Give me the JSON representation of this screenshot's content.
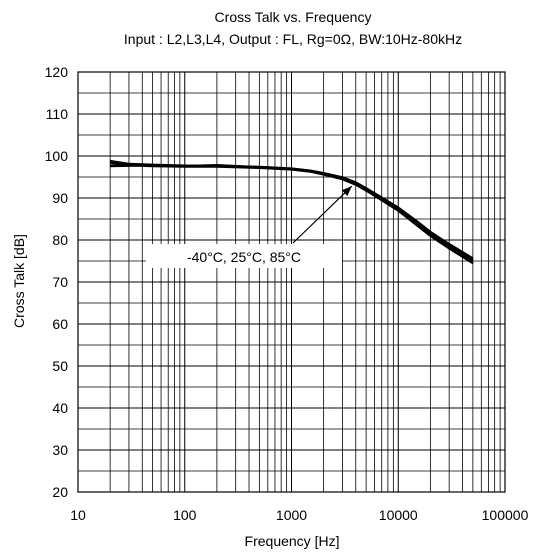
{
  "chart_data": {
    "type": "line",
    "title": "Cross Talk vs. Frequency",
    "subtitle": "Input : L2,L3,L4, Output : FL, Rg=0Ω, BW:10Hz-80kHz",
    "xlabel": "Frequency [Hz]",
    "ylabel": "Cross Talk [dB]",
    "x_scale": "log",
    "xlim": [
      10,
      100000
    ],
    "ylim": [
      20,
      120
    ],
    "x_ticks": [
      "10",
      "100",
      "1000",
      "10000",
      "100000"
    ],
    "y_ticks": [
      "20",
      "30",
      "40",
      "50",
      "60",
      "70",
      "80",
      "90",
      "100",
      "110",
      "120"
    ],
    "grid": true,
    "line_color": "#000000",
    "annotation": {
      "text": "-40°C, 25°C, 85°C",
      "points_to": [
        4000,
        94
      ]
    },
    "series": [
      {
        "x": [
          20,
          30,
          50,
          100,
          200,
          500,
          1000,
          1500,
          2000,
          3000,
          4000,
          5000,
          7000,
          10000,
          15000,
          20000,
          30000,
          50000
        ],
        "y": [
          98.3,
          97.8,
          97.6,
          97.5,
          97.5,
          97.2,
          96.8,
          96.3,
          95.6,
          94.5,
          93.2,
          91.8,
          89.5,
          87.0,
          83.5,
          81.0,
          78.0,
          74.5
        ]
      },
      {
        "x": [
          20,
          30,
          50,
          100,
          200,
          500,
          1000,
          1500,
          2000,
          3000,
          4000,
          5000,
          7000,
          10000,
          15000,
          20000,
          30000,
          50000
        ],
        "y": [
          97.6,
          97.7,
          97.8,
          97.6,
          97.8,
          97.3,
          96.9,
          96.4,
          95.8,
          94.7,
          93.5,
          92.1,
          89.8,
          87.4,
          84.0,
          81.5,
          78.6,
          75.2
        ]
      },
      {
        "x": [
          20,
          30,
          50,
          100,
          200,
          500,
          1000,
          1500,
          2000,
          3000,
          4000,
          5000,
          7000,
          10000,
          15000,
          20000,
          30000,
          50000
        ],
        "y": [
          98.8,
          98.1,
          97.9,
          97.7,
          97.6,
          97.4,
          97.0,
          96.5,
          95.9,
          94.9,
          93.7,
          92.3,
          90.1,
          87.7,
          84.4,
          81.9,
          79.0,
          75.6
        ]
      }
    ]
  }
}
